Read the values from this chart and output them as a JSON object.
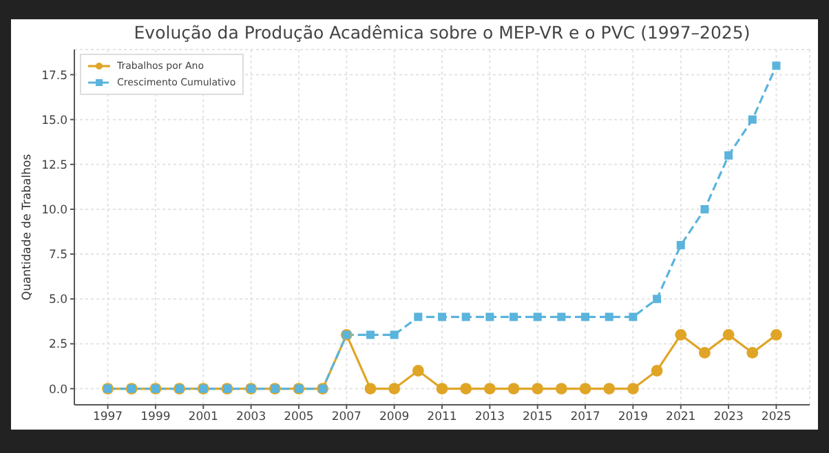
{
  "chart_data": {
    "type": "line",
    "title": "Evolução da Produção Acadêmica sobre o MEP-VR e o PVC (1997–2025)",
    "ylabel": "Quantidade de Trabalhos",
    "x": [
      1997,
      1998,
      1999,
      2000,
      2001,
      2002,
      2003,
      2004,
      2005,
      2006,
      2007,
      2008,
      2009,
      2010,
      2011,
      2012,
      2013,
      2014,
      2015,
      2016,
      2017,
      2018,
      2019,
      2020,
      2021,
      2022,
      2023,
      2024,
      2025
    ],
    "series": [
      {
        "name": "Trabalhos por Ano",
        "color": "#e0a526",
        "marker": "circle",
        "line_style": "solid",
        "values": [
          0,
          0,
          0,
          0,
          0,
          0,
          0,
          0,
          0,
          0,
          3,
          0,
          0,
          1,
          0,
          0,
          0,
          0,
          0,
          0,
          0,
          0,
          0,
          1,
          3,
          2,
          3,
          2,
          3
        ]
      },
      {
        "name": "Crescimento Cumulativo",
        "color": "#5ab4dc",
        "marker": "square",
        "line_style": "dashed",
        "values": [
          0,
          0,
          0,
          0,
          0,
          0,
          0,
          0,
          0,
          0,
          3,
          3,
          3,
          4,
          4,
          4,
          4,
          4,
          4,
          4,
          4,
          4,
          4,
          5,
          8,
          10,
          13,
          15,
          18
        ]
      }
    ],
    "xlim": [
      1995.6,
      2026.4
    ],
    "xticks": [
      1997,
      1999,
      2001,
      2003,
      2005,
      2007,
      2009,
      2011,
      2013,
      2015,
      2017,
      2019,
      2021,
      2023,
      2025
    ],
    "ylim": [
      -0.9,
      18.9
    ],
    "yticks": [
      {
        "value": 0,
        "label": "0.0"
      },
      {
        "value": 2.5,
        "label": "2.5"
      },
      {
        "value": 5,
        "label": "5.0"
      },
      {
        "value": 7.5,
        "label": "7.5"
      },
      {
        "value": 10,
        "label": "10.0"
      },
      {
        "value": 12.5,
        "label": "12.5"
      },
      {
        "value": 15,
        "label": "15.0"
      },
      {
        "value": 17.5,
        "label": "17.5"
      }
    ],
    "grid": true,
    "legend": "top left"
  }
}
